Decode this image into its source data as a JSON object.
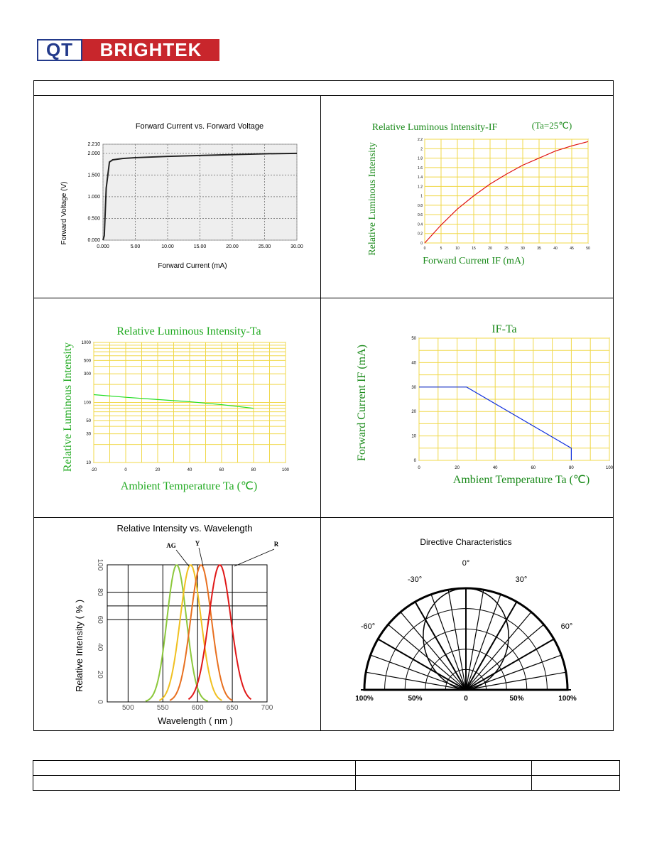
{
  "logo": {
    "qt": "QT",
    "brand": "BRIGHTEK"
  },
  "charts": {
    "fv": {
      "title": "Forward Current vs. Forward Voltage",
      "xlabel": "Forward Current (mA)",
      "ylabel": "Forward Voltage (V)",
      "xticks": [
        "0.000",
        "5.00",
        "10.00",
        "15.00",
        "20.00",
        "25.00",
        "30.00"
      ],
      "yticks": [
        "0.000",
        "0.500",
        "1.000",
        "1.500",
        "2.000",
        "2.210"
      ]
    },
    "rif": {
      "title": "Relative Luminous Intensity-IF",
      "subtitle": "(Ta=25℃)",
      "xlabel": "Forward Current IF (mA)",
      "ylabel": "Relative Luminous Intensity",
      "xticks": [
        "0",
        "5",
        "10",
        "15",
        "20",
        "25",
        "30",
        "35",
        "40",
        "45",
        "50"
      ],
      "yticks": [
        "0",
        "0.2",
        "0.4",
        "0.6",
        "0.8",
        "1",
        "1.2",
        "1.4",
        "1.6",
        "1.8",
        "2",
        "2.2"
      ]
    },
    "rta": {
      "title": "Relative Luminous Intensity-Ta",
      "xlabel": "Ambient Temperature Ta (℃)",
      "ylabel": "Relative Luminous Intensity",
      "xticks": [
        "-20",
        "0",
        "20",
        "40",
        "60",
        "80",
        "100"
      ],
      "yticks": [
        "10",
        "30",
        "50",
        "100",
        "300",
        "500",
        "1000"
      ]
    },
    "ifta": {
      "title": "IF-Ta",
      "xlabel": "Ambient Temperature Ta (℃)",
      "ylabel": "Forward Current IF (mA)",
      "xticks": [
        "0",
        "20",
        "40",
        "60",
        "80",
        "100"
      ],
      "yticks": [
        "0",
        "10",
        "20",
        "30",
        "40",
        "50"
      ]
    },
    "wl": {
      "title": "Relative Intensity vs. Wavelength",
      "xlabel": "Wavelength ( nm )",
      "ylabel": "Relative Intensity ( % )",
      "xticks": [
        "500",
        "550",
        "600",
        "650",
        "700"
      ],
      "yticks": [
        "0",
        "20",
        "40",
        "60",
        "80",
        "100"
      ],
      "labels": [
        "AG",
        "Y",
        "R"
      ]
    },
    "dir": {
      "title": "Directive Characteristics",
      "angles": [
        "0°",
        "-30°",
        "30°",
        "-60°",
        "60°"
      ],
      "scale": [
        "100%",
        "50%",
        "0",
        "50%",
        "100%"
      ]
    }
  },
  "chart_data": [
    {
      "type": "line",
      "title": "Forward Current vs. Forward Voltage",
      "xlabel": "Forward Current (mA)",
      "ylabel": "Forward Voltage (V)",
      "xlim": [
        0,
        30
      ],
      "ylim": [
        0,
        2.21
      ],
      "x": [
        0,
        0.2,
        0.5,
        1,
        1.5,
        3,
        5,
        10,
        15,
        20,
        25,
        30
      ],
      "y": [
        0,
        0.1,
        1.2,
        1.8,
        1.85,
        1.88,
        1.9,
        1.93,
        1.95,
        1.97,
        1.99,
        2.0
      ]
    },
    {
      "type": "line",
      "title": "Relative Luminous Intensity-IF",
      "xlabel": "Forward Current IF (mA)",
      "ylabel": "Relative Luminous Intensity",
      "xlim": [
        0,
        50
      ],
      "ylim": [
        0,
        2.2
      ],
      "x": [
        0,
        5,
        10,
        15,
        20,
        25,
        30,
        35,
        40,
        45,
        50
      ],
      "y": [
        0,
        0.38,
        0.72,
        1.0,
        1.25,
        1.46,
        1.65,
        1.8,
        1.95,
        2.06,
        2.15
      ]
    },
    {
      "type": "line",
      "title": "Relative Luminous Intensity-Ta",
      "xlabel": "Ambient Temperature Ta (℃)",
      "ylabel": "Relative Luminous Intensity",
      "xlim": [
        -20,
        100
      ],
      "ylim": [
        10,
        1000
      ],
      "yscale": "log",
      "x": [
        -20,
        0,
        20,
        40,
        60,
        80
      ],
      "y": [
        135,
        122,
        112,
        103,
        92,
        80
      ]
    },
    {
      "type": "line",
      "title": "IF-Ta",
      "xlabel": "Ambient Temperature Ta (℃)",
      "ylabel": "Forward Current IF (mA)",
      "xlim": [
        0,
        100
      ],
      "ylim": [
        0,
        50
      ],
      "x": [
        0,
        25,
        80,
        80
      ],
      "y": [
        30,
        30,
        5,
        0
      ]
    },
    {
      "type": "line",
      "title": "Relative Intensity vs. Wavelength",
      "xlabel": "Wavelength ( nm )",
      "ylabel": "Relative Intensity ( % )",
      "xlim": [
        470,
        700
      ],
      "ylim": [
        0,
        100
      ],
      "series": [
        {
          "name": "AG",
          "peak": 570
        },
        {
          "name": "Y",
          "peak": 590
        },
        {
          "name": "",
          "peak": 605
        },
        {
          "name": "R",
          "peak": 632
        }
      ]
    }
  ]
}
